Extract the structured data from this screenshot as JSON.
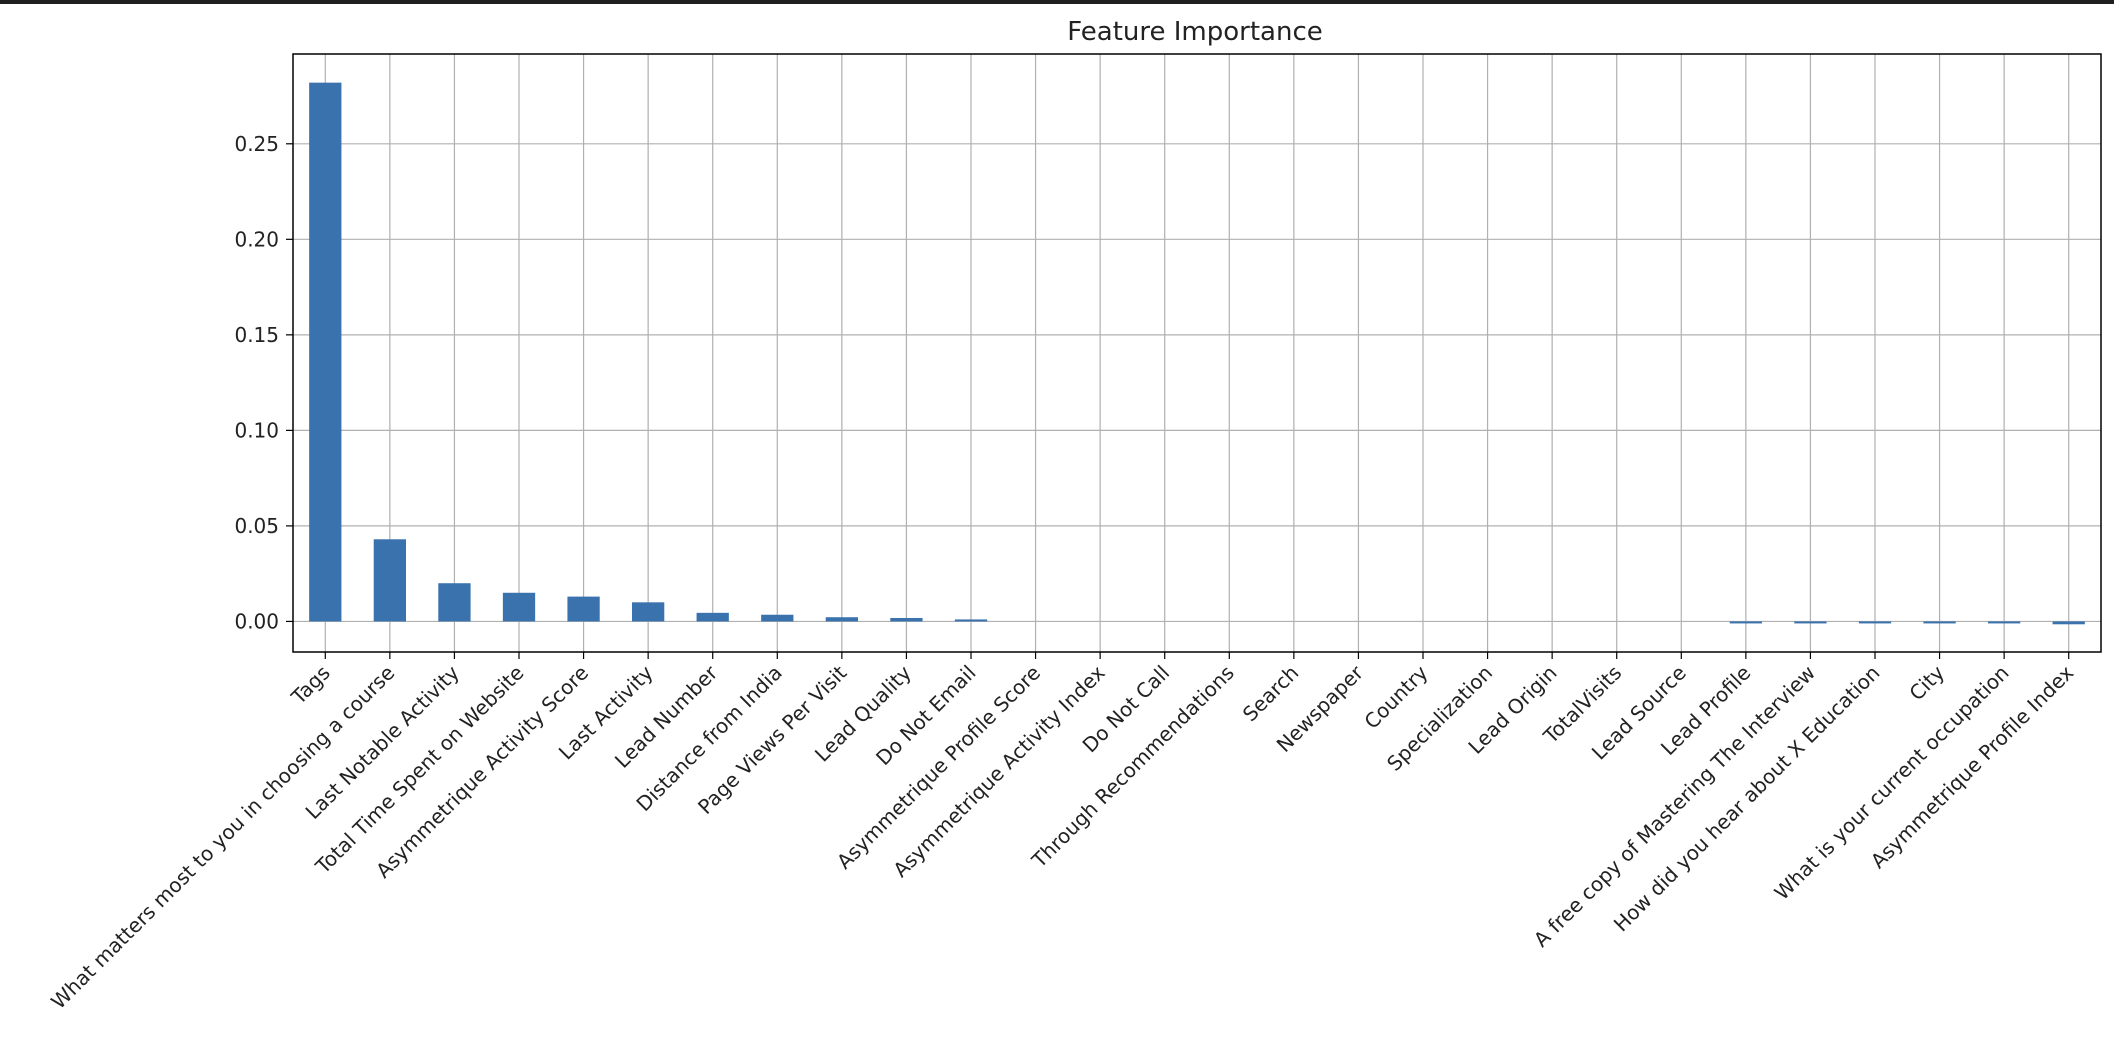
{
  "chart_data": {
    "type": "bar",
    "title": "Feature Importance",
    "xlabel": "",
    "ylabel": "",
    "ylim": [
      -0.016,
      0.297
    ],
    "yticks": [
      0.0,
      0.05,
      0.1,
      0.15,
      0.2,
      0.25
    ],
    "ytick_labels": [
      "0.00",
      "0.05",
      "0.10",
      "0.15",
      "0.20",
      "0.25"
    ],
    "grid": true,
    "legend": "none",
    "bar_color": "#3a72ae",
    "categories": [
      "Tags",
      "What matters most to you in choosing a course",
      "Last Notable Activity",
      "Total Time Spent on Website",
      "Asymmetrique Activity Score",
      "Last Activity",
      "Lead Number",
      "Distance from India",
      "Page Views Per Visit",
      "Lead Quality",
      "Do Not Email",
      "Asymmetrique Profile Score",
      "Asymmetrique Activity Index",
      "Do Not Call",
      "Through Recommendations",
      "Search",
      "Newspaper",
      "Country",
      "Specialization",
      "Lead Origin",
      "TotalVisits",
      "Lead Source",
      "Lead Profile",
      "A free copy of Mastering The Interview",
      "How did you hear about X Education",
      "City",
      "What is your current occupation",
      "Asymmetrique Profile Index"
    ],
    "values": [
      0.282,
      0.043,
      0.02,
      0.015,
      0.013,
      0.01,
      0.0045,
      0.0035,
      0.0022,
      0.0018,
      0.0008,
      0.0,
      0.0,
      0.0,
      0.0,
      0.0,
      0.0,
      0.0,
      0.0,
      0.0,
      0.0,
      0.0,
      -0.0008,
      -0.0008,
      -0.0008,
      -0.0008,
      -0.0008,
      -0.0015
    ]
  }
}
